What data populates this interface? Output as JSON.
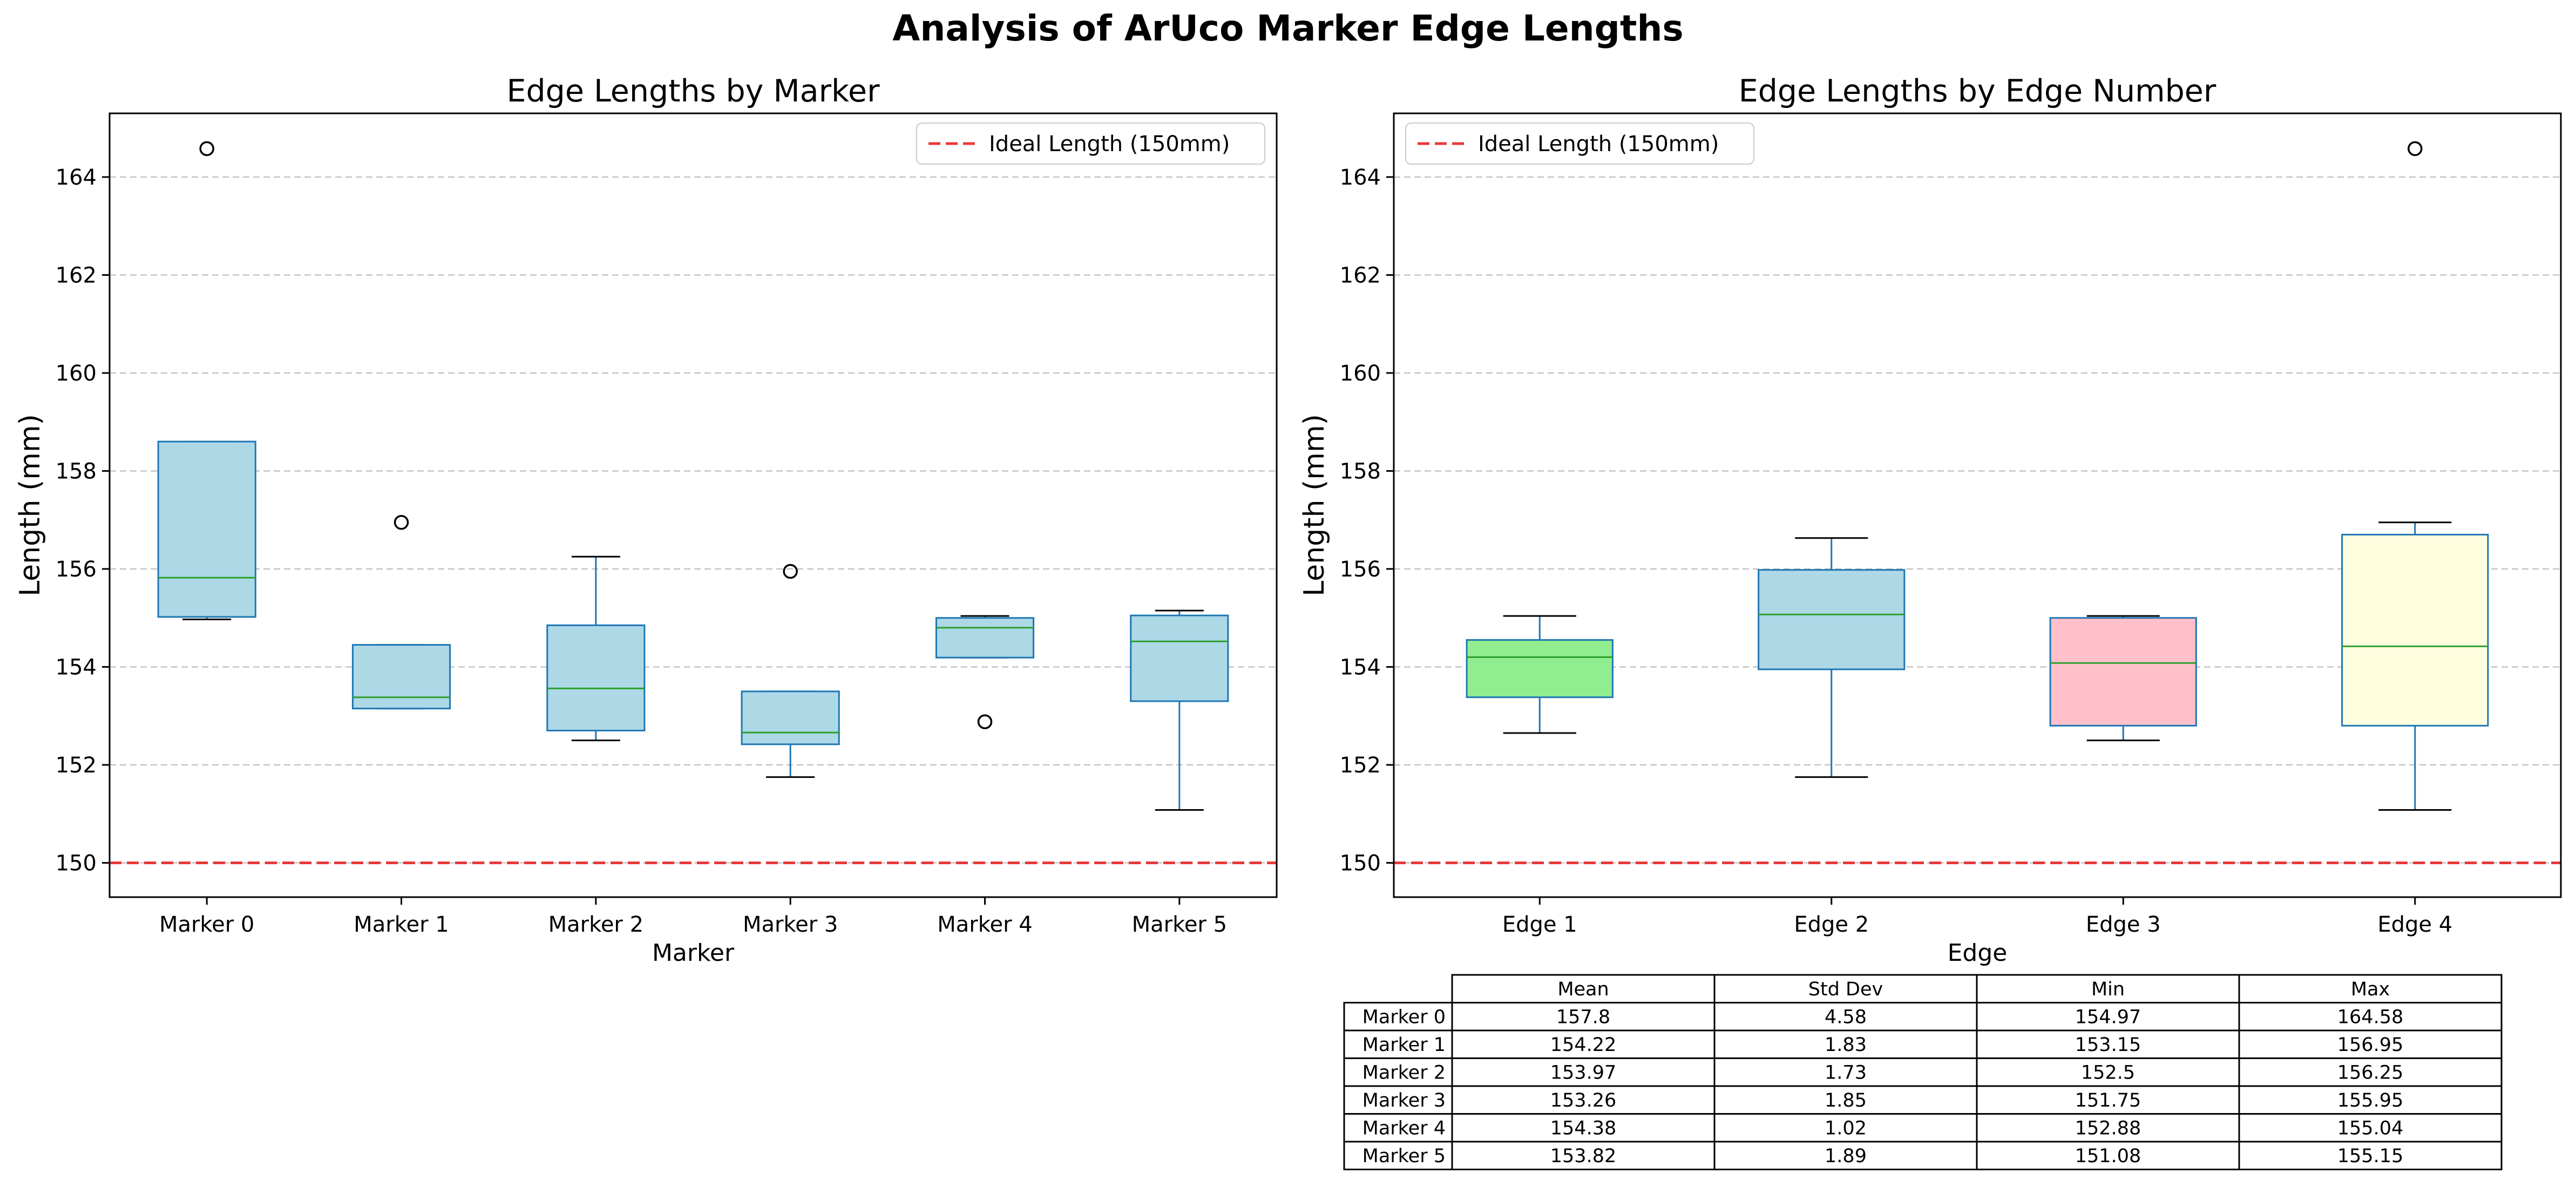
{
  "suptitle": "Analysis of ArUco Marker Edge Lengths",
  "colors": {
    "box_default": "#add8e6",
    "box_edge": "#1f77b4",
    "median": "#2ca02c",
    "whisker": "#1f77b4",
    "ideal_line": "#e8393a",
    "grid": "#b0b0b0",
    "edge_box_fills": [
      "#90ee90",
      "#add8e6",
      "#ffc0cb",
      "#ffffe0"
    ]
  },
  "chart_data": [
    {
      "type": "box",
      "title": "Edge Lengths by Marker",
      "xlabel": "Marker",
      "ylabel": "Length (mm)",
      "ylim": [
        149.3,
        165.3
      ],
      "yticks": [
        150,
        152,
        154,
        156,
        158,
        160,
        162,
        164
      ],
      "grid": "y-dashed",
      "legend": {
        "label": "Ideal Length (150mm)",
        "placement": "top-right"
      },
      "reference_line": {
        "y": 150,
        "label": "Ideal Length (150mm)"
      },
      "categories": [
        "Marker 0",
        "Marker 1",
        "Marker 2",
        "Marker 3",
        "Marker 4",
        "Marker 5"
      ],
      "boxes": [
        {
          "whislo": 154.97,
          "q1": 155.02,
          "med": 155.82,
          "q3": 158.6,
          "whishi": 158.6,
          "fliers": [
            164.58
          ]
        },
        {
          "whislo": 153.15,
          "q1": 153.15,
          "med": 153.38,
          "q3": 154.45,
          "whishi": 154.45,
          "fliers": [
            156.95
          ]
        },
        {
          "whislo": 152.5,
          "q1": 152.7,
          "med": 153.56,
          "q3": 154.85,
          "whishi": 156.25,
          "fliers": []
        },
        {
          "whislo": 151.75,
          "q1": 152.42,
          "med": 152.66,
          "q3": 153.5,
          "whishi": 153.5,
          "fliers": [
            155.95
          ]
        },
        {
          "whislo": 154.19,
          "q1": 154.19,
          "med": 154.8,
          "q3": 155.0,
          "whishi": 155.04,
          "fliers": [
            152.88
          ]
        },
        {
          "whislo": 151.08,
          "q1": 153.3,
          "med": 154.52,
          "q3": 155.05,
          "whishi": 155.15,
          "fliers": []
        }
      ]
    },
    {
      "type": "box",
      "title": "Edge Lengths by Edge Number",
      "xlabel": "Edge",
      "ylabel": "Length (mm)",
      "ylim": [
        149.3,
        165.3
      ],
      "yticks": [
        150,
        152,
        154,
        156,
        158,
        160,
        162,
        164
      ],
      "grid": "y-dashed",
      "legend": {
        "label": "Ideal Length (150mm)",
        "placement": "top-left"
      },
      "reference_line": {
        "y": 150,
        "label": "Ideal Length (150mm)"
      },
      "categories": [
        "Edge 1",
        "Edge 2",
        "Edge 3",
        "Edge 4"
      ],
      "boxes": [
        {
          "whislo": 152.65,
          "q1": 153.38,
          "med": 154.2,
          "q3": 154.55,
          "whishi": 155.04,
          "fliers": []
        },
        {
          "whislo": 151.75,
          "q1": 153.95,
          "med": 155.07,
          "q3": 155.98,
          "whishi": 156.63,
          "fliers": []
        },
        {
          "whislo": 152.5,
          "q1": 152.8,
          "med": 154.08,
          "q3": 155.0,
          "whishi": 155.04,
          "fliers": []
        },
        {
          "whislo": 151.08,
          "q1": 152.8,
          "med": 154.42,
          "q3": 156.7,
          "whishi": 156.95,
          "fliers": [
            164.58
          ]
        }
      ]
    },
    {
      "type": "table",
      "columns": [
        "Mean",
        "Std Dev",
        "Min",
        "Max"
      ],
      "rows": [
        {
          "label": "Marker 0",
          "values": [
            "157.8",
            "4.58",
            "154.97",
            "164.58"
          ]
        },
        {
          "label": "Marker 1",
          "values": [
            "154.22",
            "1.83",
            "153.15",
            "156.95"
          ]
        },
        {
          "label": "Marker 2",
          "values": [
            "153.97",
            "1.73",
            "152.5",
            "156.25"
          ]
        },
        {
          "label": "Marker 3",
          "values": [
            "153.26",
            "1.85",
            "151.75",
            "155.95"
          ]
        },
        {
          "label": "Marker 4",
          "values": [
            "154.38",
            "1.02",
            "152.88",
            "155.04"
          ]
        },
        {
          "label": "Marker 5",
          "values": [
            "153.82",
            "1.89",
            "151.08",
            "155.15"
          ]
        }
      ]
    }
  ]
}
